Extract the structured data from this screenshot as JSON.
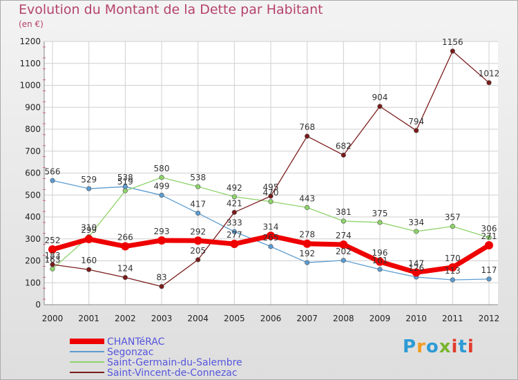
{
  "header": {
    "title": "Evolution du Montant de la Dette par Habitant",
    "subtitle": "(en €)"
  },
  "logo": {
    "text": "Proxiti"
  },
  "colors": {
    "title": "#b5426c",
    "grid": "#cfcfcf",
    "ticks_marks": "#e0507a"
  },
  "chart_data": {
    "type": "line",
    "title": "Evolution du Montant de la Dette par Habitant",
    "ylabel": "(en €)",
    "x": [
      "2000",
      "2001",
      "2002",
      "2003",
      "2004",
      "2005",
      "2006",
      "2007",
      "2008",
      "2009",
      "2010",
      "2011",
      "2012"
    ],
    "ylim": [
      0,
      1200
    ],
    "yticks": [
      0,
      100,
      200,
      300,
      400,
      500,
      600,
      700,
      800,
      900,
      1000,
      1100,
      1200
    ],
    "grid": true,
    "legend_position": "bottom-left",
    "series": [
      {
        "name": "CHANTéRAC",
        "color": "#ee0000",
        "values": [
          252,
          299,
          266,
          293,
          292,
          277,
          314,
          278,
          274,
          196,
          147,
          170,
          271
        ]
      },
      {
        "name": "Segonzac",
        "color": "#5b9bd0",
        "values": [
          566,
          529,
          538,
          499,
          417,
          333,
          265,
          192,
          202,
          161,
          126,
          113,
          117
        ]
      },
      {
        "name": "Saint-Germain-du-Salembre",
        "color": "#8ed36b",
        "values": [
          163,
          310,
          519,
          580,
          538,
          492,
          470,
          443,
          381,
          375,
          334,
          357,
          306
        ]
      },
      {
        "name": "Saint-Vincent-de-Connezac",
        "color": "#7a1a1a",
        "values": [
          183,
          160,
          124,
          83,
          205,
          421,
          495,
          768,
          682,
          904,
          794,
          1156,
          1012
        ]
      }
    ]
  }
}
